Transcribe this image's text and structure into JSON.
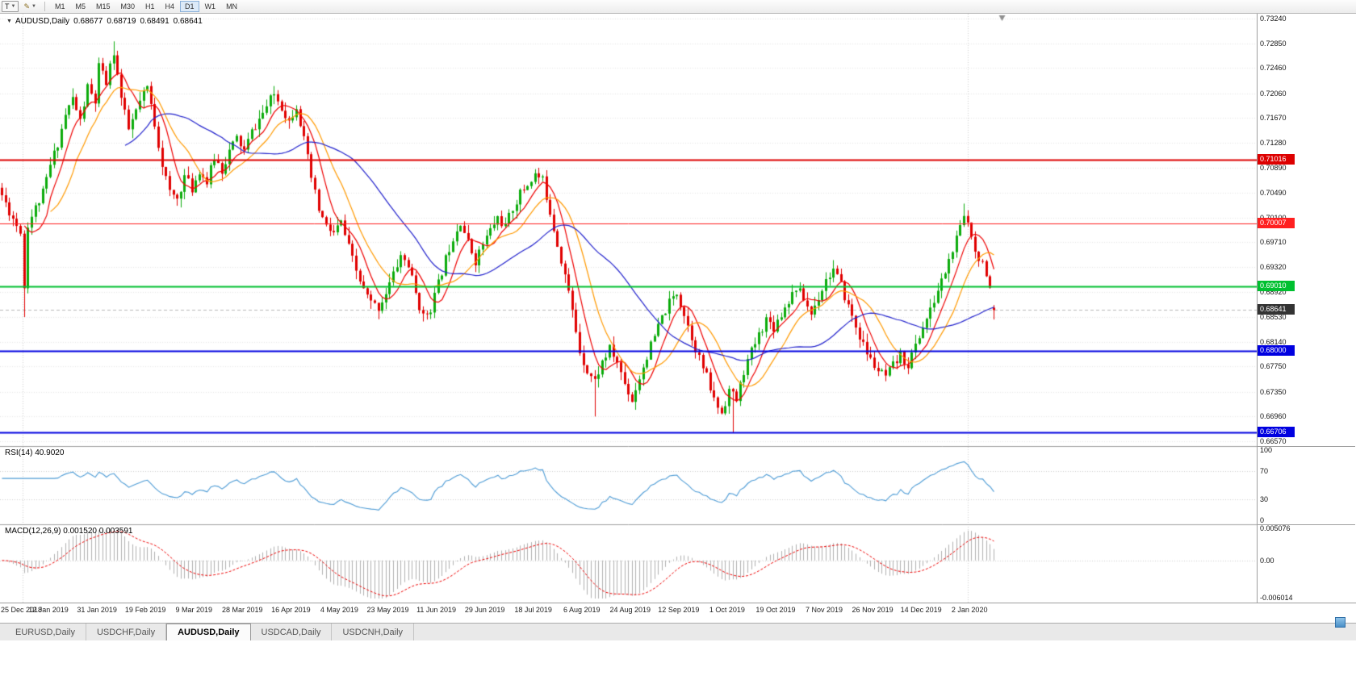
{
  "icons": {
    "collapse_arrow": "▼",
    "dropdown_caret": "▼",
    "text_tool": "T",
    "draw_tool": "✎"
  },
  "toolbar": {
    "timeframes": [
      "M1",
      "M5",
      "M15",
      "M30",
      "H1",
      "H4",
      "D1",
      "W1",
      "MN"
    ],
    "active_timeframe": "D1"
  },
  "chart": {
    "symbol_label": "AUDUSD,Daily",
    "ohlc": {
      "open": "0.68677",
      "high": "0.68719",
      "low": "0.68491",
      "close": "0.68641"
    },
    "y_ticks": [
      "0.73240",
      "0.72850",
      "0.72460",
      "0.72060",
      "0.71670",
      "0.71280",
      "0.70890",
      "0.70490",
      "0.70100",
      "0.69710",
      "0.69320",
      "0.68920",
      "0.68530",
      "0.68140",
      "0.67750",
      "0.67350",
      "0.66960",
      "0.66570"
    ]
  },
  "rsi": {
    "label": "RSI(14) 40.9020",
    "ticks": [
      "100",
      "70",
      "30",
      "0"
    ]
  },
  "macd": {
    "label": "MACD(12,26,9) 0.001520 0.003591",
    "ticks": [
      "0.005076",
      "0.00",
      "-0.006014"
    ]
  },
  "tabbar": {
    "tabs": [
      {
        "label": "EURUSD,Daily",
        "active": false
      },
      {
        "label": "USDCHF,Daily",
        "active": false
      },
      {
        "label": "AUDUSD,Daily",
        "active": true
      },
      {
        "label": "USDCAD,Daily",
        "active": false
      },
      {
        "label": "USDCNH,Daily",
        "active": false
      }
    ]
  },
  "chart_data": {
    "type": "candlestick",
    "symbol": "AUDUSD",
    "timeframe": "Daily",
    "candle_count": 267,
    "last_candle": {
      "open": 0.68677,
      "high": 0.68719,
      "low": 0.68491,
      "close": 0.68641
    },
    "price_axis_range": [
      0.6657,
      0.7324
    ],
    "x_axis_dates": [
      "25 Dec 2018",
      "12 Jan 2019",
      "31 Jan 2019",
      "19 Feb 2019",
      "9 Mar 2019",
      "28 Mar 2019",
      "16 Apr 2019",
      "4 May 2019",
      "23 May 2019",
      "11 Jun 2019",
      "29 Jun 2019",
      "18 Jul 2019",
      "6 Aug 2019",
      "24 Aug 2019",
      "12 Sep 2019",
      "1 Oct 2019",
      "19 Oct 2019",
      "7 Nov 2019",
      "26 Nov 2019",
      "14 Dec 2019",
      "2 Jan 2020"
    ],
    "close_anchors": [
      [
        0,
        0.7045
      ],
      [
        2,
        0.702
      ],
      [
        4,
        0.6998
      ],
      [
        5,
        0.699
      ],
      [
        6,
        0.69
      ],
      [
        7,
        0.7
      ],
      [
        9,
        0.7025
      ],
      [
        11,
        0.7048
      ],
      [
        13,
        0.7092
      ],
      [
        15,
        0.7128
      ],
      [
        17,
        0.7172
      ],
      [
        19,
        0.7198
      ],
      [
        21,
        0.7162
      ],
      [
        23,
        0.7215
      ],
      [
        25,
        0.7192
      ],
      [
        26,
        0.7248
      ],
      [
        28,
        0.7222
      ],
      [
        30,
        0.7272
      ],
      [
        32,
        0.7198
      ],
      [
        34,
        0.7148
      ],
      [
        37,
        0.7192
      ],
      [
        39,
        0.7215
      ],
      [
        41,
        0.7158
      ],
      [
        43,
        0.7095
      ],
      [
        45,
        0.7048
      ],
      [
        47,
        0.704
      ],
      [
        49,
        0.7075
      ],
      [
        51,
        0.7055
      ],
      [
        53,
        0.7085
      ],
      [
        55,
        0.7065
      ],
      [
        57,
        0.7105
      ],
      [
        59,
        0.7085
      ],
      [
        61,
        0.7115
      ],
      [
        63,
        0.7135
      ],
      [
        65,
        0.7115
      ],
      [
        67,
        0.7145
      ],
      [
        69,
        0.7165
      ],
      [
        71,
        0.7185
      ],
      [
        73,
        0.7205
      ],
      [
        75,
        0.7185
      ],
      [
        77,
        0.7162
      ],
      [
        79,
        0.7188
      ],
      [
        81,
        0.7132
      ],
      [
        83,
        0.7072
      ],
      [
        85,
        0.7022
      ],
      [
        87,
        0.6995
      ],
      [
        89,
        0.6985
      ],
      [
        91,
        0.7002
      ],
      [
        93,
        0.6962
      ],
      [
        95,
        0.6925
      ],
      [
        97,
        0.6895
      ],
      [
        99,
        0.6875
      ],
      [
        101,
        0.6868
      ],
      [
        103,
        0.6892
      ],
      [
        105,
        0.692
      ],
      [
        107,
        0.695
      ],
      [
        109,
        0.6935
      ],
      [
        111,
        0.689
      ],
      [
        113,
        0.6852
      ],
      [
        115,
        0.6868
      ],
      [
        117,
        0.6905
      ],
      [
        119,
        0.6945
      ],
      [
        121,
        0.698
      ],
      [
        123,
        0.7005
      ],
      [
        125,
        0.697
      ],
      [
        127,
        0.6942
      ],
      [
        129,
        0.6968
      ],
      [
        131,
        0.699
      ],
      [
        133,
        0.701
      ],
      [
        135,
        0.6995
      ],
      [
        137,
        0.7025
      ],
      [
        139,
        0.7048
      ],
      [
        141,
        0.7062
      ],
      [
        143,
        0.7078
      ],
      [
        145,
        0.7068
      ],
      [
        147,
        0.702
      ],
      [
        149,
        0.6968
      ],
      [
        151,
        0.692
      ],
      [
        153,
        0.6862
      ],
      [
        155,
        0.68
      ],
      [
        157,
        0.6768
      ],
      [
        159,
        0.6752
      ],
      [
        161,
        0.6782
      ],
      [
        163,
        0.6802
      ],
      [
        165,
        0.6782
      ],
      [
        167,
        0.6748
      ],
      [
        169,
        0.6722
      ],
      [
        171,
        0.6758
      ],
      [
        173,
        0.6792
      ],
      [
        175,
        0.6822
      ],
      [
        177,
        0.6852
      ],
      [
        179,
        0.6875
      ],
      [
        181,
        0.6892
      ],
      [
        183,
        0.6858
      ],
      [
        185,
        0.6822
      ],
      [
        187,
        0.6788
      ],
      [
        189,
        0.6758
      ],
      [
        191,
        0.6722
      ],
      [
        193,
        0.6702
      ],
      [
        195,
        0.6738
      ],
      [
        197,
        0.6722
      ],
      [
        199,
        0.6768
      ],
      [
        201,
        0.6798
      ],
      [
        203,
        0.6825
      ],
      [
        205,
        0.685
      ],
      [
        207,
        0.6838
      ],
      [
        209,
        0.6858
      ],
      [
        211,
        0.688
      ],
      [
        213,
        0.69
      ],
      [
        215,
        0.6882
      ],
      [
        217,
        0.6858
      ],
      [
        219,
        0.6885
      ],
      [
        221,
        0.6912
      ],
      [
        223,
        0.6928
      ],
      [
        225,
        0.6902
      ],
      [
        227,
        0.687
      ],
      [
        229,
        0.6838
      ],
      [
        231,
        0.6808
      ],
      [
        233,
        0.6785
      ],
      [
        235,
        0.6768
      ],
      [
        237,
        0.6758
      ],
      [
        239,
        0.6775
      ],
      [
        241,
        0.6792
      ],
      [
        243,
        0.6778
      ],
      [
        245,
        0.6808
      ],
      [
        247,
        0.6838
      ],
      [
        249,
        0.6862
      ],
      [
        251,
        0.6895
      ],
      [
        253,
        0.6925
      ],
      [
        255,
        0.6958
      ],
      [
        257,
        0.6992
      ],
      [
        258,
        0.7012
      ],
      [
        259,
        0.7002
      ],
      [
        260,
        0.6985
      ],
      [
        261,
        0.6962
      ],
      [
        262,
        0.694
      ],
      [
        263,
        0.6948
      ],
      [
        264,
        0.6918
      ],
      [
        265,
        0.6892
      ],
      [
        266,
        0.68641
      ]
    ],
    "specials": [
      {
        "i": 6,
        "low": 0.6853
      },
      {
        "i": 30,
        "high": 0.7288
      },
      {
        "i": 159,
        "low": 0.6696
      },
      {
        "i": 196,
        "low": 0.6671
      },
      {
        "i": 258,
        "high": 0.7032
      }
    ],
    "moving_averages": [
      {
        "period": 7,
        "color": "#ee0000"
      },
      {
        "period": 14,
        "color": "#ff9900"
      },
      {
        "period": 34,
        "color": "#2222cc"
      }
    ],
    "horizontal_lines": [
      {
        "price": 0.71016,
        "label": "0.71016",
        "color": "#dd0000",
        "width": 2
      },
      {
        "price": 0.70007,
        "label": "0.70007",
        "color": "#ff2020",
        "width": 1
      },
      {
        "price": 0.6901,
        "label": "0.69010",
        "color": "#00c030",
        "width": 2
      },
      {
        "price": 0.68,
        "label": "0.68000",
        "color": "#0000e0",
        "width": 2
      },
      {
        "price": 0.66706,
        "label": "0.66706",
        "color": "#0000e0",
        "width": 2
      }
    ],
    "current_price": {
      "value": 0.68641,
      "label": "0.68641",
      "badge_color": "#333333"
    },
    "indicators": [
      {
        "name": "RSI",
        "period": 14,
        "value": 40.902,
        "levels": [
          70,
          30
        ],
        "range": [
          0,
          100
        ],
        "color": "#4d9bd5"
      },
      {
        "name": "MACD",
        "fast": 12,
        "slow": 26,
        "signal": 9,
        "value": 0.00152,
        "signal_value": 0.003591,
        "scale": [
          -0.006014,
          0.005076
        ],
        "hist_color": "#b0b0b0",
        "signal_color": "#ee0000"
      }
    ],
    "colors": {
      "up": "#0cab0c",
      "down": "#e00000",
      "background": "#ffffff",
      "grid": "#e6e6e6"
    },
    "layout": {
      "candle_spacing": 4.62,
      "main_height": 536,
      "rsi_height": 97,
      "macd_height": 97,
      "price_top": 0.7324,
      "price_top_y": 6,
      "price_bottom": 0.6657,
      "price_bottom_y": 530,
      "seed": 11
    }
  }
}
